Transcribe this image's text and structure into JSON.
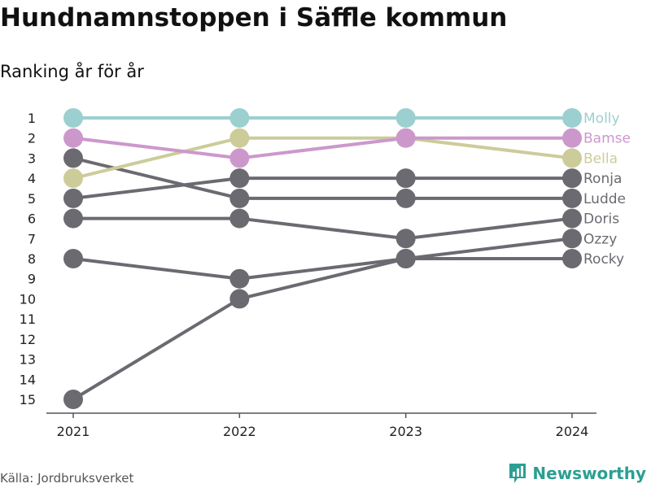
{
  "header": {
    "title": "Hundnamnstoppen i Säffle kommun",
    "subtitle": "Ranking år för år"
  },
  "footer": {
    "source": "Källa: Jordbruksverket",
    "brand": "Newsworthy"
  },
  "colors": {
    "axis": "#555555",
    "highlight_1": "#9ccfd0",
    "highlight_2": "#cc98cc",
    "highlight_3": "#cccc9a",
    "default": "#6b6a70"
  },
  "chart_data": {
    "type": "line",
    "title": "Hundnamnstoppen i Säffle kommun",
    "subtitle": "Ranking år för år",
    "x": [
      "2021",
      "2022",
      "2023",
      "2024"
    ],
    "y_ticks": [
      "1",
      "2",
      "3",
      "4",
      "5",
      "6",
      "7",
      "8",
      "9",
      "10",
      "11",
      "12",
      "13",
      "14",
      "15"
    ],
    "ylim": [
      1,
      15
    ],
    "y_reversed": true,
    "grid": false,
    "series": [
      {
        "name": "Rocky",
        "values": [
          15,
          10,
          8,
          8
        ],
        "color": "#6b6a70"
      },
      {
        "name": "Ozzy",
        "values": [
          8,
          9,
          8,
          7
        ],
        "color": "#6b6a70"
      },
      {
        "name": "Doris",
        "values": [
          6,
          6,
          7,
          6
        ],
        "color": "#6b6a70"
      },
      {
        "name": "Ludde",
        "values": [
          3,
          5,
          5,
          5
        ],
        "color": "#6b6a70"
      },
      {
        "name": "Ronja",
        "values": [
          5,
          4,
          4,
          4
        ],
        "color": "#6b6a70"
      },
      {
        "name": "Bella",
        "values": [
          4,
          2,
          2,
          3
        ],
        "color": "#cccc9a"
      },
      {
        "name": "Bamse",
        "values": [
          2,
          3,
          2,
          2
        ],
        "color": "#cc98cc"
      },
      {
        "name": "Molly",
        "values": [
          1,
          1,
          1,
          1
        ],
        "color": "#9ccfd0"
      }
    ]
  }
}
